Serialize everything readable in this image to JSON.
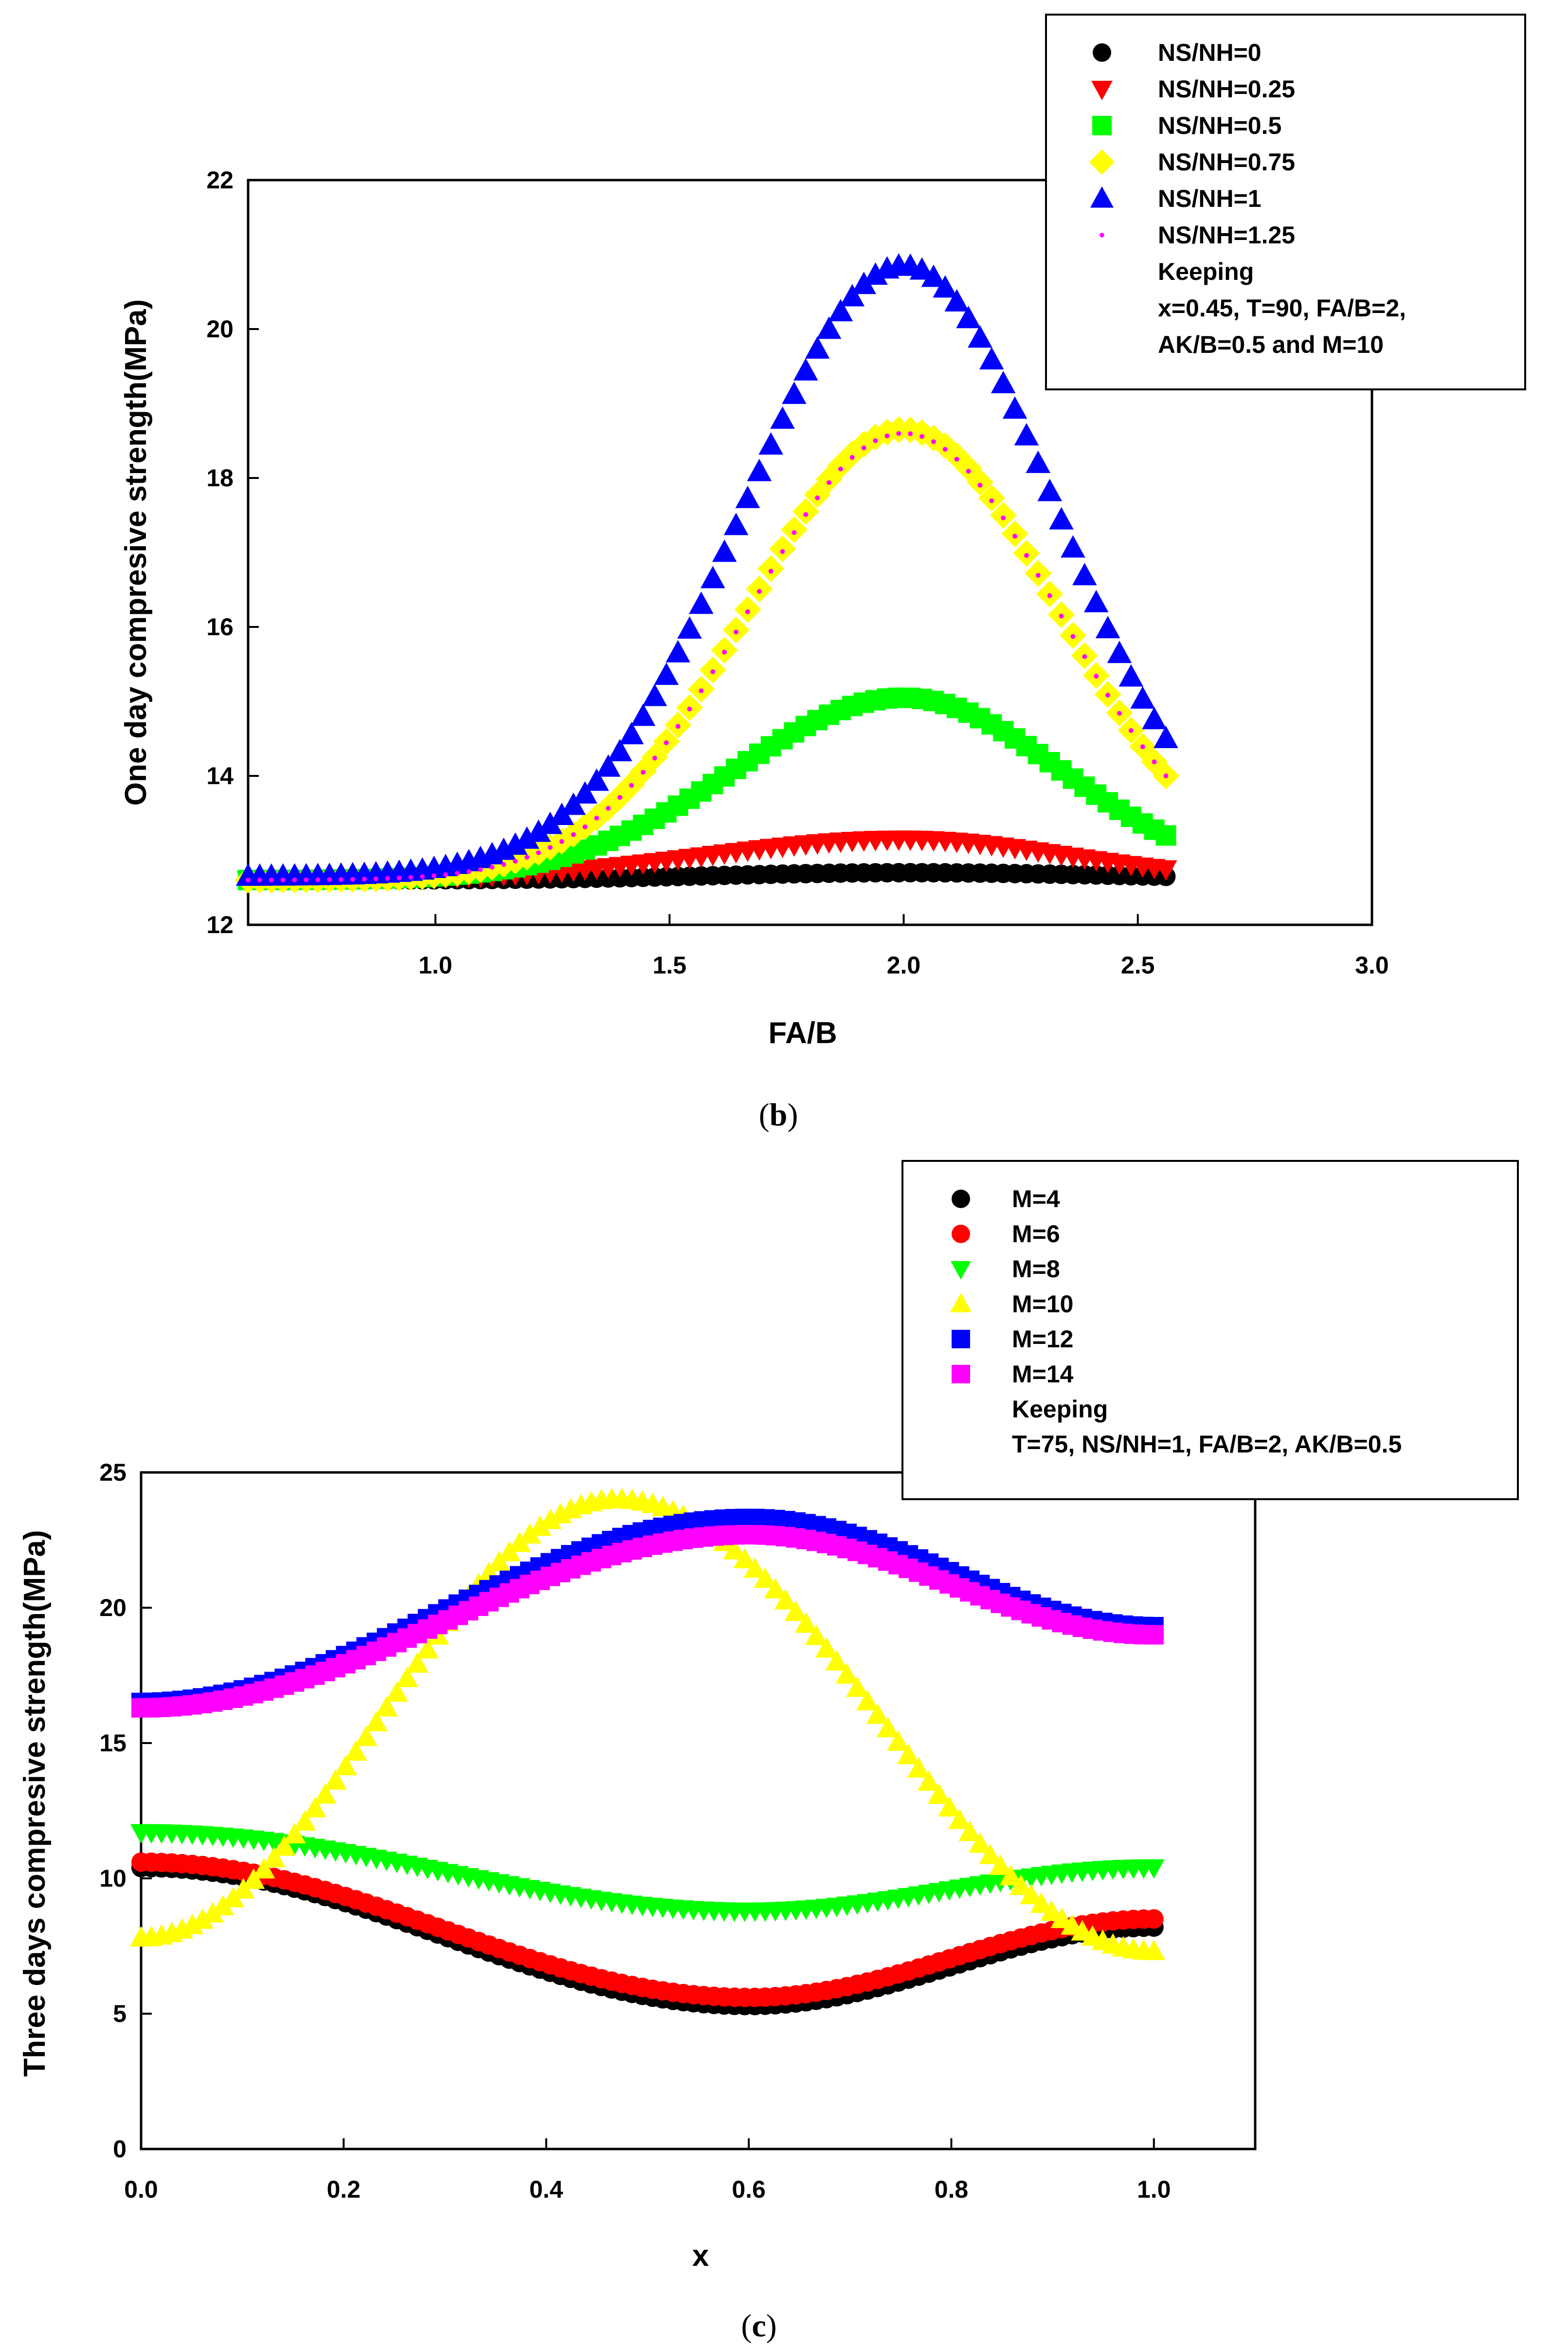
{
  "colors": {
    "black": "#000000",
    "red": "#ff0000",
    "green": "#00ff00",
    "yellow": "#ffff00",
    "blue": "#0000ff",
    "magenta": "#ff00ff"
  },
  "chart_data": [
    {
      "type": "scatter",
      "panel": "b",
      "caption_letter": "b",
      "xlabel": "FA/B",
      "ylabel": "One day compresive strength(MPa)",
      "xlim": [
        0.6,
        3.0
      ],
      "ylim": [
        12,
        22
      ],
      "xticks": [
        1.0,
        1.5,
        2.0,
        2.5,
        3.0
      ],
      "xtick_labels": [
        "1.0",
        "1.5",
        "2.0",
        "2.5",
        "3.0"
      ],
      "yticks": [
        12,
        14,
        16,
        18,
        20,
        22
      ],
      "ytick_labels": [
        "12",
        "14",
        "16",
        "18",
        "20",
        "22"
      ],
      "x_range": [
        0.6,
        2.56
      ],
      "n_points": 80,
      "series": [
        {
          "name": "NS/NH=0",
          "marker": "circle",
          "color": "#000000",
          "base": 12.6,
          "peak": 12.7,
          "x_peak": 2.0,
          "sigma": 0.4,
          "end": 12.65
        },
        {
          "name": "NS/NH=0.25",
          "marker": "triangle-down",
          "color": "#ff0000",
          "base": 12.6,
          "peak": 13.15,
          "x_peak": 2.0,
          "sigma": 0.42,
          "end": 12.75
        },
        {
          "name": "NS/NH=0.5",
          "marker": "square",
          "color": "#00ff00",
          "base": 12.6,
          "peak": 15.05,
          "x_peak": 2.0,
          "sigma": 0.36,
          "end": 13.2
        },
        {
          "name": "NS/NH=0.75",
          "marker": "diamond",
          "color": "#ffff00",
          "base": 12.6,
          "peak": 18.65,
          "x_peak": 2.0,
          "sigma": 0.33,
          "end": 14.0
        },
        {
          "name": "NS/NH=1",
          "marker": "triangle-up",
          "color": "#0000ff",
          "base": 12.65,
          "peak": 20.85,
          "x_peak": 2.0,
          "sigma": 0.34,
          "end": 14.5
        },
        {
          "name": "NS/NH=1.25",
          "marker": "dot",
          "color": "#ff00ff",
          "base": 12.6,
          "peak": 18.6,
          "x_peak": 2.0,
          "sigma": 0.33,
          "end": 14.0
        }
      ],
      "legend_note": [
        "Keeping",
        "x=0.45, T=90, FA/B=2,",
        "AK/B=0.5 and M=10"
      ],
      "legend_position": "top-right"
    },
    {
      "type": "scatter",
      "panel": "c",
      "caption_letter": "c",
      "xlabel": "x",
      "ylabel": "Three days compresive strength(MPa)",
      "xlim": [
        0.0,
        1.1
      ],
      "ylim": [
        0,
        25
      ],
      "xticks": [
        0.0,
        0.2,
        0.4,
        0.6,
        0.8,
        1.0
      ],
      "xtick_labels": [
        "0.0",
        "0.2",
        "0.4",
        "0.6",
        "0.8",
        "1.0"
      ],
      "yticks": [
        0,
        5,
        10,
        15,
        20,
        25
      ],
      "ytick_labels": [
        "0",
        "5",
        "10",
        "15",
        "20",
        "25"
      ],
      "x_range": [
        0.0,
        1.0
      ],
      "n_points": 100,
      "series": [
        {
          "name": "M=4",
          "marker": "circle",
          "color": "#000000",
          "start": 10.4,
          "x_ext": 0.6,
          "y_ext": 5.3,
          "end": 8.2
        },
        {
          "name": "M=6",
          "marker": "circle",
          "color": "#ff0000",
          "start": 10.6,
          "x_ext": 0.6,
          "y_ext": 5.6,
          "end": 8.5
        },
        {
          "name": "M=8",
          "marker": "triangle-down",
          "color": "#00ff00",
          "start": 11.7,
          "x_ext": 0.6,
          "y_ext": 8.8,
          "end": 10.4
        },
        {
          "name": "M=10",
          "marker": "triangle-up",
          "color": "#ffff00",
          "start": 7.8,
          "x_ext": 0.47,
          "y_ext": 24.0,
          "end": 7.3
        },
        {
          "name": "M=12",
          "marker": "square",
          "color": "#0000ff",
          "start": 16.5,
          "x_ext": 0.6,
          "y_ext": 23.3,
          "end": 19.3
        },
        {
          "name": "M=14",
          "marker": "square",
          "color": "#ff00ff",
          "start": 16.3,
          "x_ext": 0.6,
          "y_ext": 22.7,
          "end": 19.0
        }
      ],
      "legend_note": [
        "Keeping",
        "T=75, NS/NH=1,   FA/B=2,   AK/B=0.5"
      ],
      "legend_position": "top-right"
    }
  ]
}
